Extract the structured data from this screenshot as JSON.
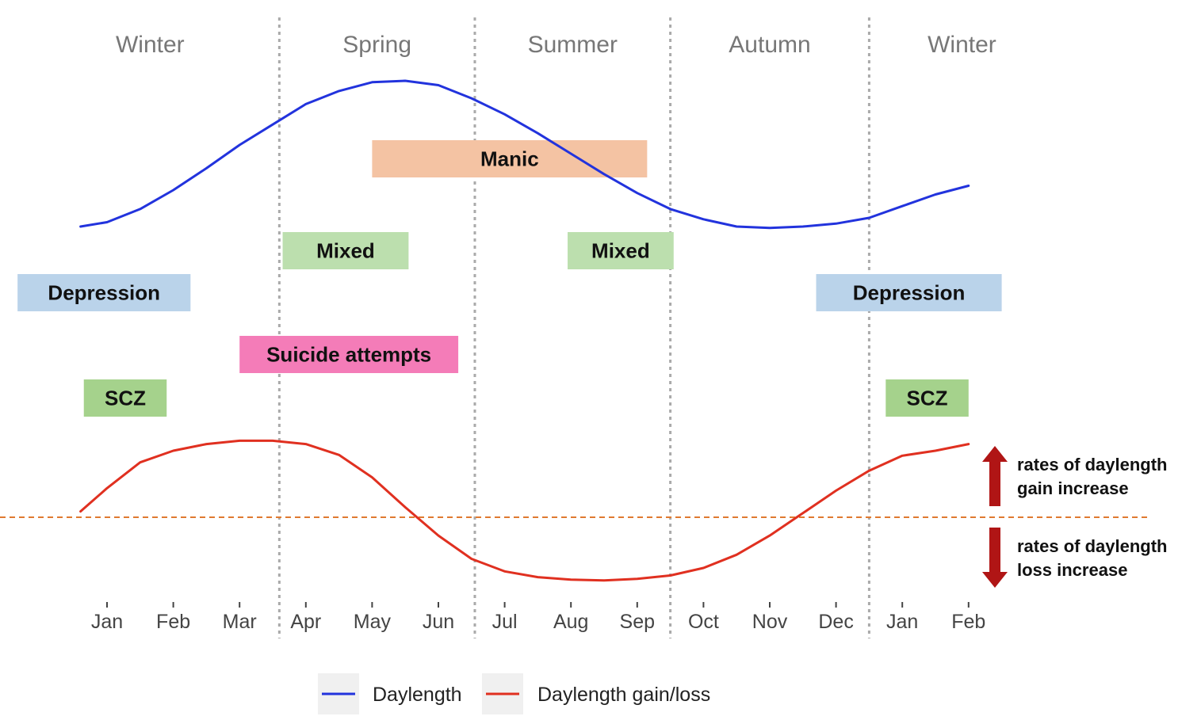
{
  "chart_data": {
    "type": "line",
    "title": "",
    "seasons": [
      "Winter",
      "Spring",
      "Summer",
      "Autumn",
      "Winter"
    ],
    "months": [
      "Jan",
      "Feb",
      "Mar",
      "Apr",
      "May",
      "Jun",
      "Jul",
      "Aug",
      "Sep",
      "Oct",
      "Nov",
      "Dec",
      "Jan",
      "Feb"
    ],
    "series": [
      {
        "name": "Daylength",
        "color": "#2233dd",
        "x": [
          -0.4,
          0.0,
          0.5,
          1.0,
          1.5,
          2.0,
          2.5,
          3.0,
          3.5,
          4.0,
          4.5,
          5.0,
          5.5,
          6.0,
          6.5,
          7.0,
          7.5,
          8.0,
          8.5,
          9.0,
          9.5,
          10.0,
          10.5,
          11.0,
          11.5,
          12.0,
          12.5,
          13.0
        ],
        "values": [
          0.0,
          0.03,
          0.12,
          0.25,
          0.4,
          0.56,
          0.7,
          0.84,
          0.93,
          0.99,
          1.0,
          0.97,
          0.88,
          0.77,
          0.64,
          0.5,
          0.36,
          0.23,
          0.12,
          0.05,
          0.0,
          -0.01,
          0.0,
          0.02,
          0.06,
          0.14,
          0.22,
          0.28
        ]
      },
      {
        "name": "Daylength gain/loss",
        "color": "#e03020",
        "x": [
          -0.4,
          0.0,
          0.5,
          1.0,
          1.5,
          2.0,
          2.5,
          3.0,
          3.5,
          4.0,
          4.5,
          5.0,
          5.5,
          6.0,
          6.5,
          7.0,
          7.5,
          8.0,
          8.5,
          9.0,
          9.5,
          10.0,
          10.5,
          11.0,
          11.5,
          12.0,
          12.5,
          13.0
        ],
        "values": [
          0.07,
          0.35,
          0.66,
          0.8,
          0.88,
          0.92,
          0.92,
          0.88,
          0.75,
          0.48,
          0.12,
          -0.22,
          -0.5,
          -0.65,
          -0.72,
          -0.75,
          -0.76,
          -0.74,
          -0.7,
          -0.61,
          -0.45,
          -0.22,
          0.05,
          0.32,
          0.56,
          0.74,
          0.8,
          0.88
        ]
      }
    ],
    "xlabel": "",
    "ylabel": "",
    "grid": false,
    "legend": "bottom-center"
  },
  "episodes": [
    {
      "label": "Manic",
      "start": 4.0,
      "end": 8.15,
      "row": "manic",
      "color": "#f4c3a3"
    },
    {
      "label": "Mixed",
      "start": 2.65,
      "end": 4.55,
      "row": "mixed",
      "color": "#bcdfae"
    },
    {
      "label": "Mixed",
      "start": 6.95,
      "end": 8.55,
      "row": "mixed",
      "color": "#bcdfae"
    },
    {
      "label": "Depression",
      "start": -1.35,
      "end": 1.26,
      "row": "depression",
      "color": "#bad3ea"
    },
    {
      "label": "Depression",
      "start": 10.7,
      "end": 13.5,
      "row": "depression",
      "color": "#bad3ea"
    },
    {
      "label": "Suicide attempts",
      "start": 2.0,
      "end": 5.3,
      "row": "suicide",
      "color": "#f47cb8"
    },
    {
      "label": "SCZ",
      "start": -0.35,
      "end": 0.9,
      "row": "scz",
      "color": "#a5d28c"
    },
    {
      "label": "SCZ",
      "start": 11.75,
      "end": 13.0,
      "row": "scz",
      "color": "#a5d28c"
    }
  ],
  "season_boundaries": [
    2.6,
    5.55,
    8.5,
    11.5
  ],
  "annotations": {
    "gain": [
      "rates of daylength",
      "gain increase"
    ],
    "loss": [
      "rates of daylength",
      "loss increase"
    ],
    "arrow_color": "#b01515",
    "baseline_color": "#e07a30"
  }
}
